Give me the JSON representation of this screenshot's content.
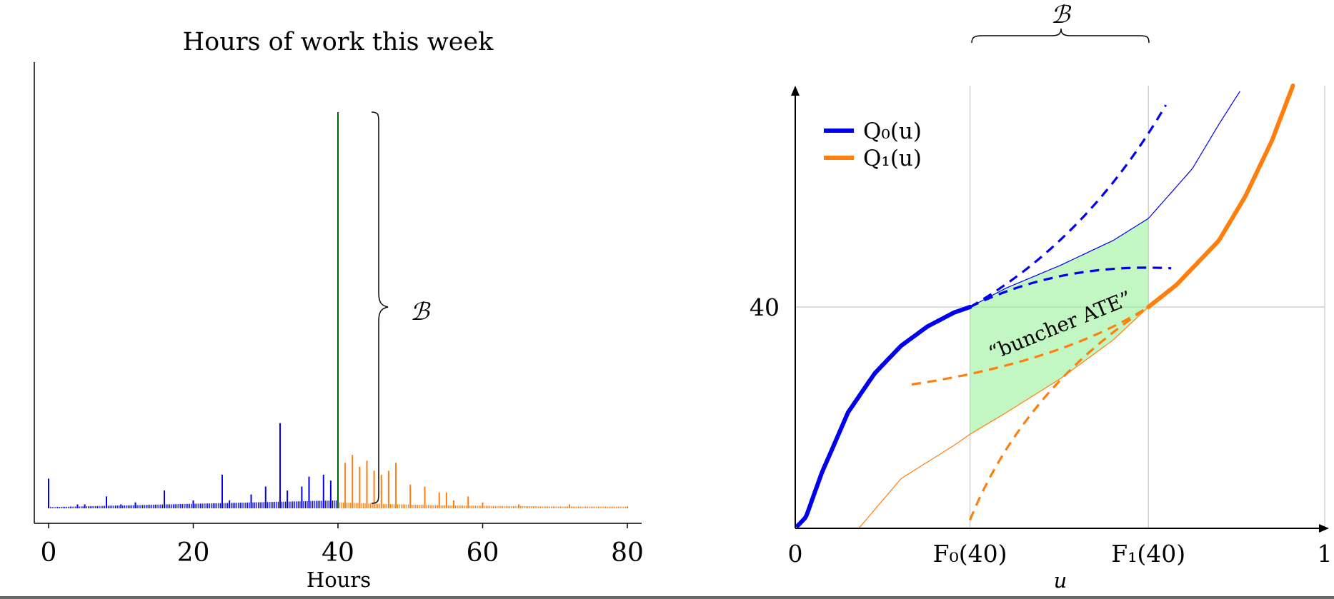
{
  "left_chart": {
    "title": "Hours of work this week",
    "xlabel": "Hours",
    "xticks": [
      "0",
      "20",
      "40",
      "60",
      "80"
    ],
    "bracket_label": "ℬ",
    "chart_data": {
      "type": "bar",
      "title": "Hours of work this week",
      "xlabel": "Hours",
      "ylabel": "",
      "xlim": [
        0,
        80
      ],
      "ylim": [
        0,
        100
      ],
      "bunching_point": 40,
      "spike_at_40": 100,
      "colors": {
        "below": "#0000ee",
        "above": "#ff7f0e",
        "kink": "#006400"
      },
      "series": [
        {
          "name": "below kink",
          "x": [
            0,
            4,
            5,
            8,
            10,
            12,
            16,
            20,
            24,
            25,
            28,
            30,
            32,
            33,
            35,
            36,
            38,
            39
          ],
          "values": [
            7.5,
            1,
            1,
            3,
            1,
            1.5,
            4.5,
            2,
            8.5,
            2,
            3.5,
            5.5,
            21.5,
            4.5,
            5.5,
            8,
            8.5,
            7
          ]
        },
        {
          "name": "above kink",
          "x": [
            40,
            41,
            42,
            43,
            44,
            45,
            46,
            47,
            48,
            50,
            52,
            54,
            55,
            56,
            58,
            60,
            65,
            72,
            80
          ],
          "values": [
            12,
            11.5,
            13.5,
            10.5,
            12,
            9.5,
            8.5,
            9.5,
            11.5,
            6,
            5.5,
            4,
            4,
            2,
            3,
            1.5,
            1,
            1,
            0.5
          ]
        }
      ]
    }
  },
  "right_chart": {
    "bracket_label": "ℬ",
    "annotation": "“buncher ATE”",
    "xlabel": "u",
    "ytick": "40",
    "xticks": [
      "0",
      "F₀(40)",
      "F₁(40)",
      "1"
    ],
    "legend": [
      {
        "label": "Q₀(u)",
        "color": "#0000ee"
      },
      {
        "label": "Q₁(u)",
        "color": "#ff7f0e"
      }
    ],
    "chart_data": {
      "type": "line",
      "xlabel": "u",
      "ylabel": "",
      "xlim": [
        0,
        1
      ],
      "ylim": [
        0,
        80
      ],
      "ytick_values": [
        40
      ],
      "vertical_markers": [
        {
          "label": "F₀(40)",
          "x": 0.33
        },
        {
          "label": "F₁(40)",
          "x": 0.667
        }
      ],
      "series": [
        {
          "name": "Q₀(u)",
          "color": "#0000ee",
          "x": [
            0.0,
            0.02,
            0.05,
            0.1,
            0.15,
            0.2,
            0.25,
            0.3,
            0.33,
            0.4,
            0.5,
            0.6,
            0.667,
            0.75,
            0.8,
            0.84
          ],
          "y": [
            0,
            2,
            10,
            21,
            28,
            33,
            36.5,
            39,
            40,
            43.5,
            47.5,
            52,
            56,
            65,
            73,
            79
          ]
        },
        {
          "name": "Q₁(u)",
          "color": "#ff7f0e",
          "x": [
            0.12,
            0.2,
            0.3,
            0.33,
            0.4,
            0.5,
            0.6,
            0.667,
            0.72,
            0.8,
            0.85,
            0.9,
            0.94
          ],
          "y": [
            0,
            9,
            15,
            17,
            21,
            27,
            34,
            40,
            44,
            52,
            60,
            70,
            80
          ]
        }
      ],
      "shaded_region": {
        "label": "“buncher ATE”",
        "x": [
          0.33,
          0.667
        ]
      }
    }
  }
}
